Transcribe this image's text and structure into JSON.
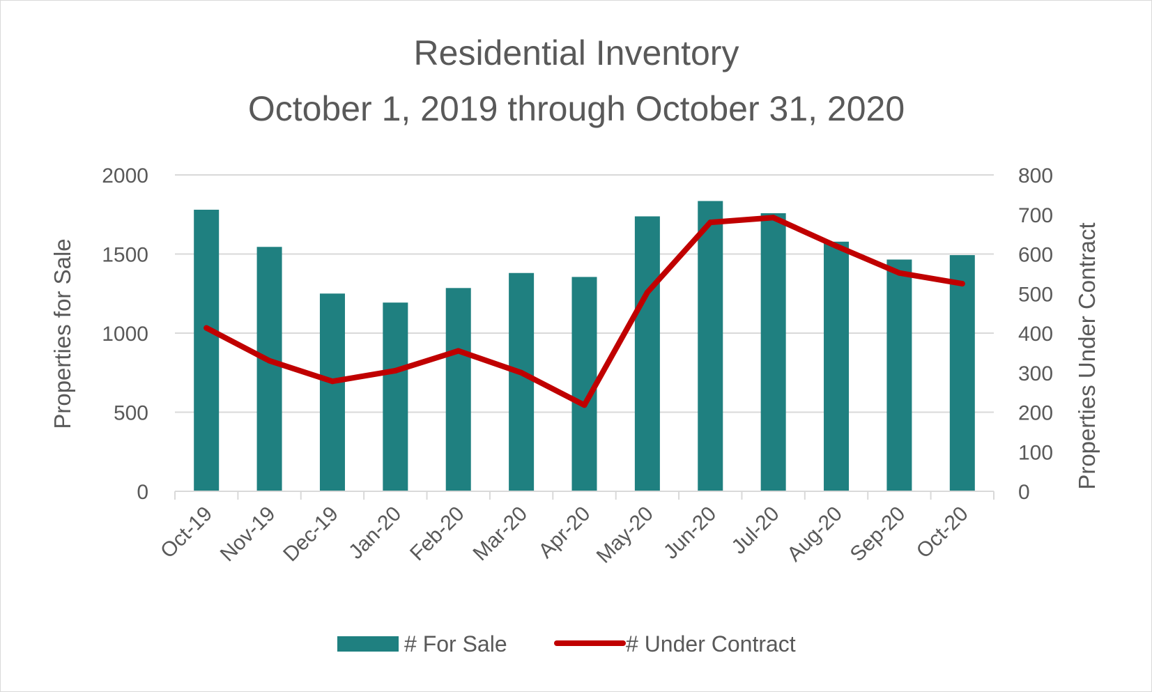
{
  "chart_data": {
    "type": "bar+line",
    "title": "Residential Inventory",
    "subtitle": "October 1, 2019 through October 31, 2020",
    "categories": [
      "Oct-19",
      "Nov-19",
      "Dec-19",
      "Jan-20",
      "Feb-20",
      "Mar-20",
      "Apr-20",
      "May-20",
      "Jun-20",
      "Jul-20",
      "Aug-20",
      "Sep-20",
      "Oct-20"
    ],
    "series": [
      {
        "name": "# For Sale",
        "type": "bar",
        "axis": "left",
        "color": "#1f8080",
        "values": [
          1780,
          1545,
          1250,
          1193,
          1285,
          1380,
          1355,
          1738,
          1835,
          1758,
          1578,
          1465,
          1493
        ]
      },
      {
        "name": "# Under Contract",
        "type": "line",
        "axis": "right",
        "color": "#c00000",
        "values": [
          413,
          330,
          278,
          305,
          355,
          300,
          218,
          503,
          680,
          692,
          620,
          552,
          525
        ]
      }
    ],
    "ylabel": "Properties for Sale",
    "y2label": "Properties Under Contract",
    "ylim": [
      0,
      2000
    ],
    "y2lim": [
      0,
      800
    ],
    "yticks": [
      0,
      500,
      1000,
      1500,
      2000
    ],
    "y2ticks": [
      0,
      100,
      200,
      300,
      400,
      500,
      600,
      700,
      800
    ],
    "grid": true,
    "legend_position": "bottom"
  }
}
